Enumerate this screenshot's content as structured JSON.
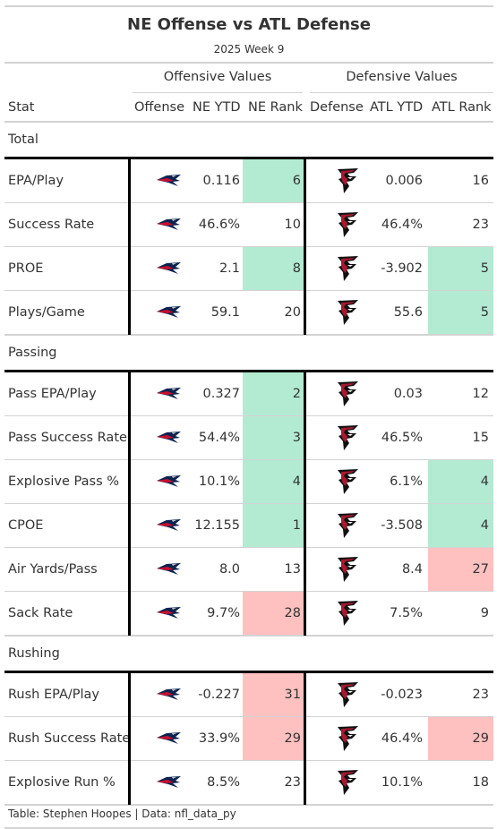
{
  "title": "NE Offense vs ATL Defense",
  "subtitle": "2025 Week 9",
  "spanners": {
    "offense": "Offensive Values",
    "defense": "Defensive Values"
  },
  "columns": {
    "stat": "Stat",
    "offense": "Offense",
    "ne_ytd": "NE YTD",
    "ne_rank": "NE Rank",
    "defense": "Defense",
    "atl_ytd": "ATL YTD",
    "atl_rank": "ATL Rank"
  },
  "icons": {
    "offense_logo": "patriots-logo-icon",
    "defense_logo": "falcons-logo-icon"
  },
  "colors": {
    "good": "#b3ebd2",
    "bad": "#ffc0c0",
    "ne_navy": "#0b2350",
    "ne_red": "#c8102e",
    "atl_red": "#a71930",
    "atl_black": "#101010"
  },
  "footer": "Table: Stephen Hoopes | Data: nfl_data_py",
  "chart_data": {
    "type": "table",
    "title": "NE Offense vs ATL Defense",
    "subtitle": "2025 Week 9",
    "groups": [
      {
        "name": "Total",
        "rows": [
          {
            "stat": "EPA/Play",
            "ne_ytd": "0.116",
            "ne_rank": "6",
            "ne_rank_highlight": "good",
            "atl_ytd": "0.006",
            "atl_rank": "16",
            "atl_rank_highlight": ""
          },
          {
            "stat": "Success Rate",
            "ne_ytd": "46.6%",
            "ne_rank": "10",
            "ne_rank_highlight": "",
            "atl_ytd": "46.4%",
            "atl_rank": "23",
            "atl_rank_highlight": ""
          },
          {
            "stat": "PROE",
            "ne_ytd": "2.1",
            "ne_rank": "8",
            "ne_rank_highlight": "good",
            "atl_ytd": "-3.902",
            "atl_rank": "5",
            "atl_rank_highlight": "good"
          },
          {
            "stat": "Plays/Game",
            "ne_ytd": "59.1",
            "ne_rank": "20",
            "ne_rank_highlight": "",
            "atl_ytd": "55.6",
            "atl_rank": "5",
            "atl_rank_highlight": "good"
          }
        ]
      },
      {
        "name": "Passing",
        "rows": [
          {
            "stat": "Pass EPA/Play",
            "ne_ytd": "0.327",
            "ne_rank": "2",
            "ne_rank_highlight": "good",
            "atl_ytd": "0.03",
            "atl_rank": "12",
            "atl_rank_highlight": ""
          },
          {
            "stat": "Pass Success Rate",
            "ne_ytd": "54.4%",
            "ne_rank": "3",
            "ne_rank_highlight": "good",
            "atl_ytd": "46.5%",
            "atl_rank": "15",
            "atl_rank_highlight": ""
          },
          {
            "stat": "Explosive Pass %",
            "ne_ytd": "10.1%",
            "ne_rank": "4",
            "ne_rank_highlight": "good",
            "atl_ytd": "6.1%",
            "atl_rank": "4",
            "atl_rank_highlight": "good"
          },
          {
            "stat": "CPOE",
            "ne_ytd": "12.155",
            "ne_rank": "1",
            "ne_rank_highlight": "good",
            "atl_ytd": "-3.508",
            "atl_rank": "4",
            "atl_rank_highlight": "good"
          },
          {
            "stat": "Air Yards/Pass",
            "ne_ytd": "8.0",
            "ne_rank": "13",
            "ne_rank_highlight": "",
            "atl_ytd": "8.4",
            "atl_rank": "27",
            "atl_rank_highlight": "bad"
          },
          {
            "stat": "Sack Rate",
            "ne_ytd": "9.7%",
            "ne_rank": "28",
            "ne_rank_highlight": "bad",
            "atl_ytd": "7.5%",
            "atl_rank": "9",
            "atl_rank_highlight": ""
          }
        ]
      },
      {
        "name": "Rushing",
        "rows": [
          {
            "stat": "Rush EPA/Play",
            "ne_ytd": "-0.227",
            "ne_rank": "31",
            "ne_rank_highlight": "bad",
            "atl_ytd": "-0.023",
            "atl_rank": "23",
            "atl_rank_highlight": ""
          },
          {
            "stat": "Rush Success Rate",
            "ne_ytd": "33.9%",
            "ne_rank": "29",
            "ne_rank_highlight": "bad",
            "atl_ytd": "46.4%",
            "atl_rank": "29",
            "atl_rank_highlight": "bad"
          },
          {
            "stat": "Explosive Run %",
            "ne_ytd": "8.5%",
            "ne_rank": "23",
            "ne_rank_highlight": "",
            "atl_ytd": "10.1%",
            "atl_rank": "18",
            "atl_rank_highlight": ""
          }
        ]
      }
    ]
  }
}
